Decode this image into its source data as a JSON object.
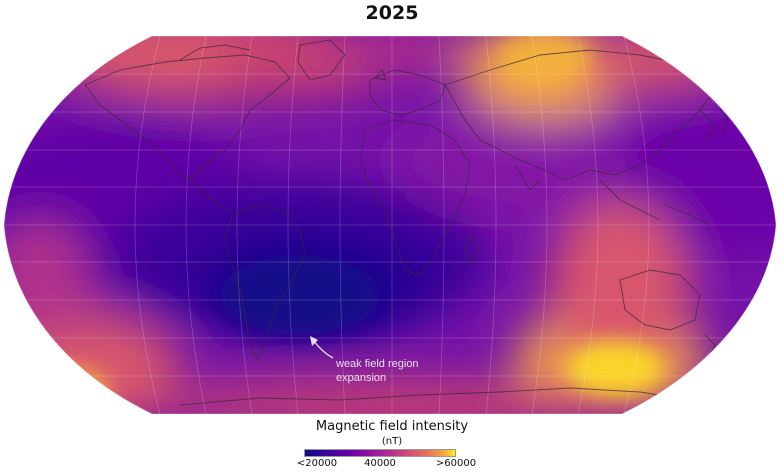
{
  "title": "2025",
  "annotation": {
    "line1": "weak field region",
    "line2": "expansion"
  },
  "colorbar": {
    "title": "Magnetic field intensity",
    "unit": "(nT)",
    "ticks": [
      "<20000",
      "40000",
      ">60000"
    ],
    "colormap": "plasma",
    "range": [
      20000,
      60000
    ]
  },
  "colors": {
    "low": "#0d0887",
    "mid": "#8a0ba5",
    "high": "#f0f921",
    "coastline": "#3a2a3a",
    "graticule": "#ffffff"
  }
}
